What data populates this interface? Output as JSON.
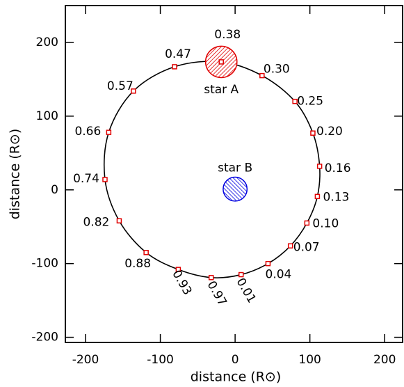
{
  "chart_data": {
    "type": "scatter",
    "xlabel": "distance (R⊙)",
    "ylabel": "distance (R⊙)",
    "xlim": [
      -227,
      224
    ],
    "ylim": [
      -207,
      250
    ],
    "xticks": [
      -200,
      -100,
      0,
      100,
      200
    ],
    "yticks": [
      -200,
      -100,
      0,
      100,
      200
    ],
    "color": "#e00000",
    "orbit_color": "#000000",
    "point_labels": [
      "0.01",
      "0.04",
      "0.07",
      "0.10",
      "0.13",
      "0.16",
      "0.20",
      "0.25",
      "0.30",
      "0.38",
      "0.47",
      "0.57",
      "0.66",
      "0.74",
      "0.82",
      "0.88",
      "0.93",
      "0.97"
    ],
    "x": [
      8,
      44,
      74,
      96,
      110,
      113,
      104,
      80,
      36,
      -18.5,
      -81,
      -136,
      -169,
      -174,
      -155,
      -119,
      -76,
      -32
    ],
    "values": [
      -115,
      -100,
      -76,
      -45,
      -9,
      32,
      77,
      120,
      155,
      173.6,
      167,
      134,
      78,
      14,
      -42,
      -85,
      -108,
      -119
    ],
    "stars": [
      {
        "name": "star A",
        "x": -18.5,
        "y": 173.6,
        "radius": 21,
        "color": "#e00000"
      },
      {
        "name": "star B",
        "x": 0,
        "y": 1,
        "radius": 16,
        "color": "#0000e0"
      }
    ]
  }
}
